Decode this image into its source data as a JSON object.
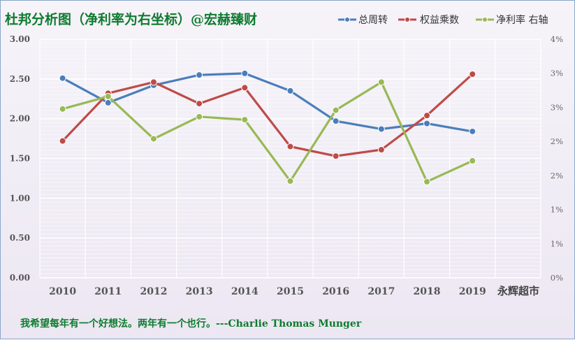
{
  "title": "杜邦分析图（净利率为右坐标）@宏赫臻财",
  "corner_label": "永辉超市",
  "quote": "我希望每年有一个好想法。两年有一个也行。---Charlie Thomas  Munger",
  "colors": {
    "asset_turnover": "#4a7ebb",
    "equity_multiplier": "#be4b48",
    "net_margin": "#98b954",
    "title": "#0e7b2f"
  },
  "chart_data": {
    "type": "line",
    "title": "杜邦分析图（净利率为右坐标）@宏赫臻财",
    "categories": [
      "2010",
      "2011",
      "2012",
      "2013",
      "2014",
      "2015",
      "2016",
      "2017",
      "2018",
      "2019"
    ],
    "y_left": {
      "ylim": [
        0,
        3
      ],
      "ticks": [
        "0.00",
        "0.50",
        "1.00",
        "1.50",
        "2.00",
        "2.50",
        "3.00"
      ]
    },
    "y_right": {
      "ylim": [
        0,
        4
      ],
      "ticks": [
        "0%",
        "1%",
        "1%",
        "2%",
        "2%",
        "3%",
        "3%",
        "4%"
      ]
    },
    "series": [
      {
        "name": "总周转",
        "axis": "left",
        "color": "#4a7ebb",
        "values": [
          2.51,
          2.2,
          2.42,
          2.55,
          2.57,
          2.35,
          1.97,
          1.87,
          1.94,
          1.84
        ]
      },
      {
        "name": "权益乘数",
        "axis": "left",
        "color": "#be4b48",
        "values": [
          1.72,
          2.32,
          2.46,
          2.19,
          2.39,
          1.65,
          1.53,
          1.61,
          2.04,
          2.56
        ]
      },
      {
        "name": "净利率 右轴",
        "axis": "right",
        "color": "#98b954",
        "values": [
          2.83,
          3.04,
          2.33,
          2.7,
          2.65,
          1.62,
          2.81,
          3.28,
          1.61,
          1.96
        ]
      }
    ],
    "legend": "top-right",
    "grid": true
  }
}
